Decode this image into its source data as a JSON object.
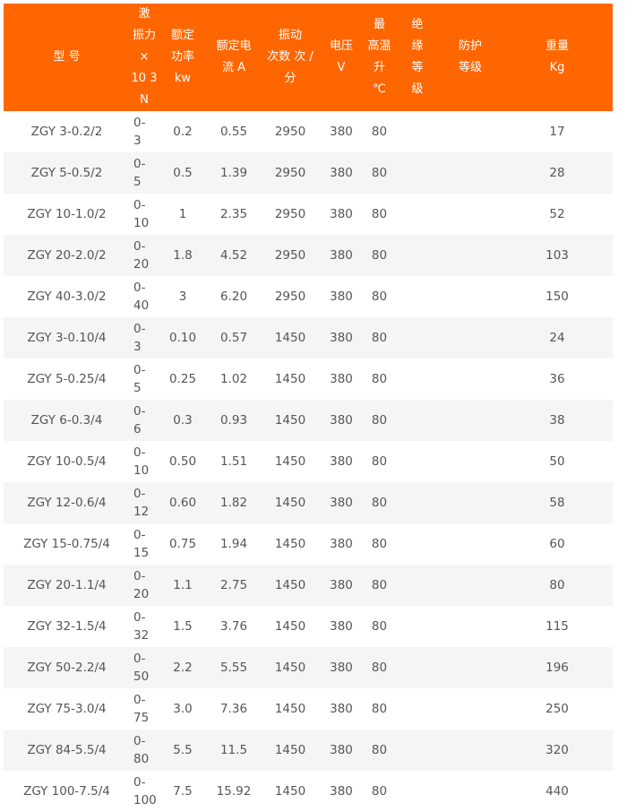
{
  "header": {
    "model": "型 号",
    "force": "激\n振力\n×\n10 3\nN",
    "power": "额定\n功率\nkw",
    "current": "额定电\n流 A",
    "freq": "振动\n次数 次 /\n分",
    "voltage": "电压\nV",
    "temp": "最\n高温升\n℃",
    "insulation": "绝\n缘\n等\n级",
    "protection": "防护\n等级",
    "weight": "重量\nKg"
  },
  "rows": [
    {
      "model": "ZGY 3-0.2/2",
      "force": "0-\n3",
      "power": "0.2",
      "current": "0.55",
      "freq": "2950",
      "voltage": "380",
      "temp": "80",
      "weight": "17"
    },
    {
      "model": "ZGY 5-0.5/2",
      "force": "0-\n5",
      "power": "0.5",
      "current": "1.39",
      "freq": "2950",
      "voltage": "380",
      "temp": "80",
      "weight": "28"
    },
    {
      "model": "ZGY 10-1.0/2",
      "force": "0-\n10",
      "power": "1",
      "current": "2.35",
      "freq": "2950",
      "voltage": "380",
      "temp": "80",
      "weight": "52"
    },
    {
      "model": "ZGY 20-2.0/2",
      "force": "0-\n20",
      "power": "1.8",
      "current": "4.52",
      "freq": "2950",
      "voltage": "380",
      "temp": "80",
      "weight": "103"
    },
    {
      "model": "ZGY 40-3.0/2",
      "force": "0-\n40",
      "power": "3",
      "current": "6.20",
      "freq": "2950",
      "voltage": "380",
      "temp": "80",
      "weight": "150"
    },
    {
      "model": "ZGY 3-0.10/4",
      "force": "0-\n3",
      "power": "0.10",
      "current": "0.57",
      "freq": "1450",
      "voltage": "380",
      "temp": "80",
      "weight": "24"
    },
    {
      "model": "ZGY 5-0.25/4",
      "force": "0-\n5",
      "power": "0.25",
      "current": "1.02",
      "freq": "1450",
      "voltage": "380",
      "temp": "80",
      "weight": "36"
    },
    {
      "model": "ZGY 6-0.3/4",
      "force": "0-\n6",
      "power": "0.3",
      "current": "0.93",
      "freq": "1450",
      "voltage": "380",
      "temp": "80",
      "weight": "38"
    },
    {
      "model": "ZGY 10-0.5/4",
      "force": "0-\n10",
      "power": "0.50",
      "current": "1.51",
      "freq": "1450",
      "voltage": "380",
      "temp": "80",
      "weight": "50"
    },
    {
      "model": "ZGY 12-0.6/4",
      "force": "0-\n12",
      "power": "0.60",
      "current": "1.82",
      "freq": "1450",
      "voltage": "380",
      "temp": "80",
      "weight": "58"
    },
    {
      "model": "ZGY 15-0.75/4",
      "force": "0-\n15",
      "power": "0.75",
      "current": "1.94",
      "freq": "1450",
      "voltage": "380",
      "temp": "80",
      "weight": "60"
    },
    {
      "model": "ZGY 20-1.1/4",
      "force": "0-\n20",
      "power": "1.1",
      "current": "2.75",
      "freq": "1450",
      "voltage": "380",
      "temp": "80",
      "weight": "80"
    },
    {
      "model": "ZGY 32-1.5/4",
      "force": "0-\n32",
      "power": "1.5",
      "current": "3.76",
      "freq": "1450",
      "voltage": "380",
      "temp": "80",
      "weight": "115"
    },
    {
      "model": "ZGY 50-2.2/4",
      "force": "0-\n50",
      "power": "2.2",
      "current": "5.55",
      "freq": "1450",
      "voltage": "380",
      "temp": "80",
      "weight": "196"
    },
    {
      "model": "ZGY 75-3.0/4",
      "force": "0-\n75",
      "power": "3.0",
      "current": "7.36",
      "freq": "1450",
      "voltage": "380",
      "temp": "80",
      "weight": "250"
    },
    {
      "model": "ZGY 84-5.5/4",
      "force": "0-\n80",
      "power": "5.5",
      "current": "11.5",
      "freq": "1450",
      "voltage": "380",
      "temp": "80",
      "weight": "320"
    },
    {
      "model": "ZGY 100-7.5/4",
      "force": "0-\n100",
      "power": "7.5",
      "current": "15.92",
      "freq": "1450",
      "voltage": "380",
      "temp": "80",
      "weight": "440"
    }
  ]
}
